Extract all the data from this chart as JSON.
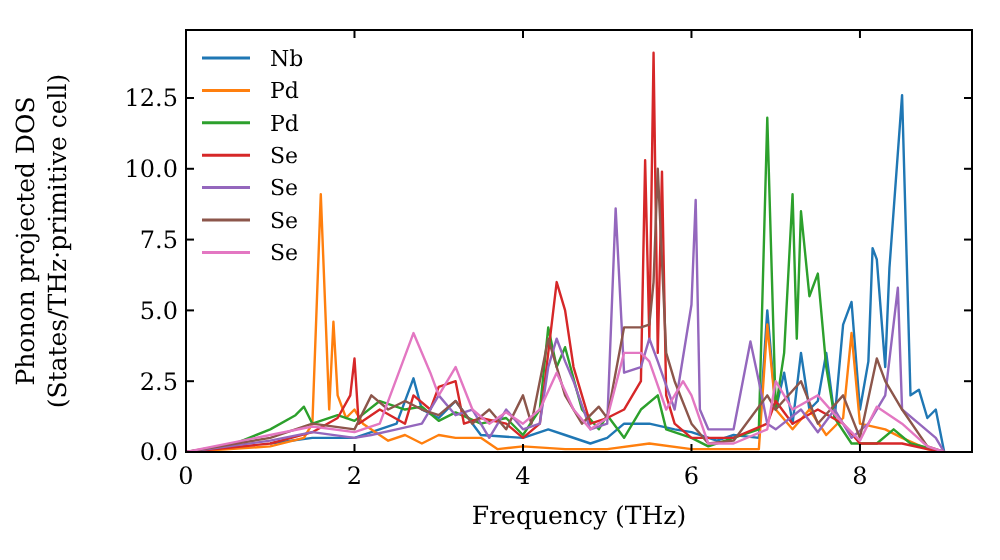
{
  "chart_data": {
    "type": "line",
    "xlabel": "Frequency (THz)",
    "ylabel": "Phonon projected DOS\n(States/THz·primitive cell)",
    "xlim": [
      0,
      9.33
    ],
    "ylim": [
      0,
      14.9
    ],
    "xticks": [
      0,
      2,
      4,
      6,
      8
    ],
    "yticks": [
      {
        "value": 0,
        "label": "0.0"
      },
      {
        "value": 2.5,
        "label": "2.5"
      },
      {
        "value": 5,
        "label": "5.0"
      },
      {
        "value": 7.5,
        "label": "7.5"
      },
      {
        "value": 10,
        "label": "10.0"
      },
      {
        "value": 12.5,
        "label": "12.5"
      }
    ],
    "legend": "top left",
    "grid": false,
    "series": [
      {
        "name": "Nb",
        "color": "#1f77b4",
        "x": [
          1,
          1.5,
          2,
          2.2,
          2.5,
          2.7,
          2.8,
          3,
          3.2,
          3.5,
          4,
          4.3,
          4.5,
          4.8,
          5,
          5.2,
          5.5,
          5.8,
          6,
          6.3,
          6.5,
          6.8,
          6.9,
          7,
          7.1,
          7.2,
          7.3,
          7.4,
          7.5,
          7.6,
          7.7,
          7.8,
          7.9,
          8,
          8.1,
          8.15,
          8.2,
          8.3,
          8.35,
          8.5,
          8.6,
          8.7,
          8.8,
          8.9,
          9
        ],
        "values": [
          0.3,
          0.5,
          0.5,
          0.7,
          1,
          2.6,
          1.5,
          1.2,
          1.8,
          0.6,
          0.5,
          0.8,
          0.6,
          0.3,
          0.5,
          1,
          1,
          0.8,
          0.7,
          0.4,
          0.6,
          0.5,
          5,
          1.5,
          2.8,
          1,
          3.5,
          1.5,
          1.8,
          3.5,
          1.2,
          4.5,
          5.3,
          1.5,
          3.2,
          7.2,
          6.8,
          3,
          6.5,
          12.6,
          2,
          2.2,
          1.2,
          1.5,
          0
        ]
      },
      {
        "name": "Pd",
        "color": "#ff7f0e",
        "x": [
          0,
          1,
          1.4,
          1.5,
          1.6,
          1.7,
          1.75,
          1.8,
          1.9,
          2,
          2.1,
          2.4,
          2.6,
          2.8,
          3,
          3.2,
          3.5,
          3.7,
          4,
          4.5,
          5,
          5.5,
          6,
          6.5,
          6.8,
          6.9,
          7,
          7.2,
          7.4,
          7.6,
          7.8,
          7.9,
          8,
          8.3,
          8.5,
          8.8,
          9
        ],
        "values": [
          0,
          0.2,
          0.5,
          1,
          9.1,
          1.5,
          4.6,
          2,
          1.2,
          1.5,
          1,
          0.4,
          0.6,
          0.3,
          0.6,
          0.5,
          0.5,
          0.1,
          0.2,
          0.1,
          0.1,
          0.3,
          0.1,
          0.1,
          0.1,
          4.5,
          1.5,
          0.8,
          1.5,
          0.6,
          1.2,
          4.2,
          1,
          0.8,
          0.5,
          0.1,
          0
        ]
      },
      {
        "name": "Pd",
        "color": "#2ca02c",
        "x": [
          0,
          0.5,
          1,
          1.3,
          1.4,
          1.5,
          1.8,
          2,
          2.3,
          2.6,
          2.8,
          3,
          3.2,
          3.5,
          3.8,
          4,
          4.2,
          4.3,
          4.4,
          4.5,
          4.7,
          4.9,
          5,
          5.2,
          5.4,
          5.6,
          5.7,
          6,
          6.2,
          6.5,
          6.8,
          6.9,
          7,
          7.1,
          7.2,
          7.25,
          7.3,
          7.4,
          7.5,
          7.6,
          7.7,
          7.9,
          8.2,
          8.4,
          8.6,
          9
        ],
        "values": [
          0,
          0.2,
          0.8,
          1.3,
          1.6,
          1,
          1.3,
          1.1,
          1.8,
          1.5,
          1.6,
          1.1,
          1.4,
          1,
          1.2,
          0.6,
          1.5,
          4.4,
          3,
          3.7,
          1.5,
          0.8,
          1.3,
          0.5,
          1.5,
          2,
          0.8,
          0.5,
          0.2,
          0.5,
          0.8,
          11.8,
          1.5,
          3.5,
          9.1,
          4,
          8.5,
          5.5,
          6.3,
          3,
          1.2,
          0.3,
          0.3,
          0.8,
          0.3,
          0
        ]
      },
      {
        "name": "Se",
        "color": "#d62728",
        "x": [
          0,
          1,
          1.5,
          1.8,
          1.95,
          2,
          2.05,
          2.3,
          2.6,
          2.7,
          2.9,
          3,
          3.2,
          3.3,
          3.5,
          3.8,
          4,
          4.2,
          4.4,
          4.5,
          4.6,
          4.8,
          5,
          5.2,
          5.4,
          5.45,
          5.5,
          5.55,
          5.6,
          5.65,
          5.7,
          5.8,
          6,
          6.5,
          6.9,
          7,
          7.2,
          7.5,
          7.8,
          8,
          8.5,
          8.8,
          9
        ],
        "values": [
          0,
          0.3,
          0.7,
          1.2,
          2,
          3.3,
          1,
          1.5,
          1,
          2,
          1.5,
          2.3,
          2.5,
          1,
          1.2,
          1,
          0.5,
          1,
          6,
          5,
          3,
          1,
          1.2,
          1.5,
          2.5,
          10.3,
          4,
          14.1,
          3.5,
          9.9,
          2,
          1,
          0.5,
          0.5,
          1,
          1.8,
          1,
          1.5,
          1,
          0.3,
          0.3,
          0.1,
          0
        ]
      },
      {
        "name": "Se",
        "color": "#9467bd",
        "x": [
          0,
          1,
          1.5,
          2,
          2.2,
          2.5,
          2.8,
          3,
          3.2,
          3.4,
          3.6,
          3.8,
          4,
          4.2,
          4.3,
          4.4,
          4.5,
          4.6,
          4.8,
          5,
          5.1,
          5.2,
          5.4,
          5.5,
          5.6,
          5.8,
          6,
          6.05,
          6.1,
          6.2,
          6.5,
          6.7,
          6.8,
          6.9,
          7,
          7.3,
          7.5,
          7.7,
          7.9,
          8.1,
          8.3,
          8.45,
          8.5,
          8.7,
          8.9,
          9
        ],
        "values": [
          0,
          0.4,
          0.7,
          0.5,
          0.6,
          0.8,
          1,
          2,
          1.3,
          1.5,
          0.5,
          1.5,
          0.8,
          1,
          3,
          4,
          3.2,
          2.5,
          0.8,
          1,
          8.6,
          2.8,
          3,
          4,
          3.2,
          1.5,
          5.2,
          8.9,
          1.5,
          0.8,
          0.8,
          3.9,
          2.5,
          1,
          0.8,
          1.5,
          0.7,
          1.5,
          0.5,
          1,
          2,
          5.8,
          1.5,
          1,
          0.5,
          0
        ]
      },
      {
        "name": "Se",
        "color": "#8c564b",
        "x": [
          0,
          1,
          1.5,
          2,
          2.2,
          2.4,
          2.6,
          2.8,
          3,
          3.2,
          3.4,
          3.6,
          3.8,
          4,
          4.1,
          4.3,
          4.5,
          4.7,
          4.9,
          5,
          5.2,
          5.4,
          5.5,
          5.55,
          5.6,
          5.7,
          5.8,
          6,
          6.2,
          6.5,
          6.9,
          7,
          7.3,
          7.5,
          7.8,
          8,
          8.2,
          8.3,
          8.5,
          8.8,
          9
        ],
        "values": [
          0,
          0.5,
          1,
          0.8,
          2,
          1.5,
          1.8,
          1.5,
          1.3,
          1.8,
          1,
          1.5,
          0.8,
          2,
          1,
          4,
          2,
          1,
          1.6,
          1.2,
          4.4,
          4.4,
          4.5,
          6,
          10,
          3.5,
          2.5,
          1,
          0.3,
          0.4,
          2,
          1.5,
          2.5,
          1,
          2,
          0.5,
          3.3,
          2.5,
          1.5,
          0.2,
          0
        ]
      },
      {
        "name": "Se",
        "color": "#e377c2",
        "x": [
          0,
          1,
          1.5,
          2,
          2.3,
          2.7,
          2.9,
          3,
          3.2,
          3.4,
          3.6,
          3.8,
          4,
          4.2,
          4.4,
          4.6,
          4.8,
          5,
          5.2,
          5.4,
          5.5,
          5.7,
          5.9,
          6,
          6.2,
          6.5,
          6.9,
          7,
          7.2,
          7.5,
          7.8,
          8,
          8.2,
          8.5,
          8.8,
          9
        ],
        "values": [
          0,
          0.6,
          0.9,
          0.7,
          1,
          4.2,
          2.8,
          2,
          3,
          1.5,
          1,
          1.4,
          1,
          1.5,
          2.8,
          1.5,
          0.8,
          1.2,
          3.5,
          3.5,
          3.2,
          1.5,
          2.5,
          2,
          0.3,
          0.3,
          0.8,
          2.5,
          1.5,
          2,
          1,
          0.4,
          1.6,
          1,
          0.2,
          0
        ]
      }
    ]
  }
}
